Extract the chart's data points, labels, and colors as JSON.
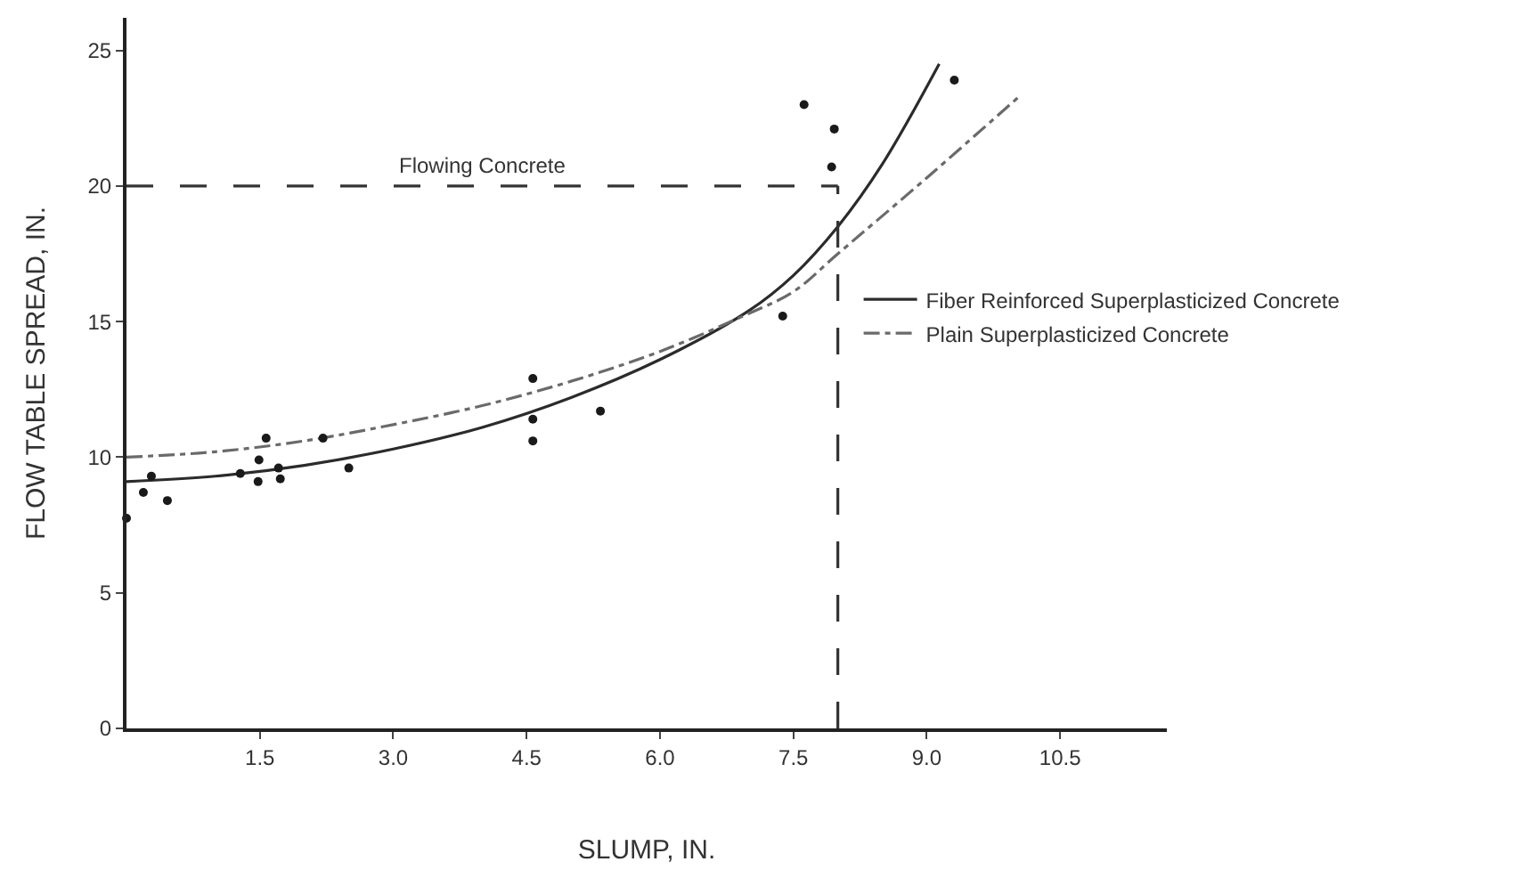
{
  "chart_data": {
    "type": "line",
    "xlabel": "SLUMP, IN.",
    "ylabel": "FLOW TABLE SPREAD, IN.",
    "xlim": [
      0,
      11.7
    ],
    "ylim": [
      0,
      26.2
    ],
    "xticks": [
      1.5,
      {
        "value": 3,
        "label": "3.0"
      },
      4.5,
      {
        "value": 6,
        "label": "6.0"
      },
      7.5,
      {
        "value": 9,
        "label": "9.0"
      },
      10.5
    ],
    "yticks": [
      0,
      5,
      10,
      15,
      20,
      25
    ],
    "legend": "right",
    "series": [
      {
        "name": "Fiber Reinforced Superplasticized Concrete",
        "color": "#2b2b2b",
        "line_style": "solid",
        "marker": "none",
        "x": [
          0,
          1,
          2,
          3,
          4,
          5,
          6,
          7,
          7.5,
          8,
          8.5,
          9.14
        ],
        "values": [
          9.1,
          9.3,
          9.7,
          10.3,
          11.1,
          12.2,
          13.6,
          15.4,
          16.7,
          18.5,
          20.8,
          24.5
        ]
      },
      {
        "name": "Plain Superplasticized Concrete",
        "color": "#6a6a6a",
        "line_style": "dashed",
        "marker": "none",
        "x": [
          0,
          1,
          2,
          3,
          4,
          5,
          6,
          7,
          7.5,
          8,
          9,
          10.04
        ],
        "values": [
          10.0,
          10.2,
          10.6,
          11.2,
          11.9,
          12.8,
          13.9,
          15.3,
          16.1,
          17.5,
          20.3,
          23.3
        ]
      },
      {
        "type": "scatter",
        "color": "#1a1a1a",
        "marker": "circle",
        "x": [
          0,
          0.19,
          0.28,
          0.46,
          1.28,
          1.48,
          1.49,
          1.57,
          1.71,
          1.73,
          2.21,
          2.5,
          4.57,
          4.57,
          4.57,
          5.33,
          7.38,
          7.62,
          7.96,
          7.93,
          9.31
        ],
        "values": [
          7.75,
          8.7,
          9.3,
          8.4,
          9.4,
          9.1,
          9.9,
          10.7,
          9.6,
          9.2,
          10.7,
          9.6,
          12.9,
          11.4,
          10.6,
          11.7,
          15.2,
          23.0,
          22.1,
          20.7,
          23.9
        ]
      }
    ],
    "ref_lines": [
      {
        "axis": "y",
        "value": 20,
        "label": "Flowing Concrete",
        "color": "#333333",
        "line_style": "dashed"
      },
      {
        "axis": "x",
        "value": 8,
        "color": "#333333",
        "line_style": "dashed"
      }
    ]
  }
}
